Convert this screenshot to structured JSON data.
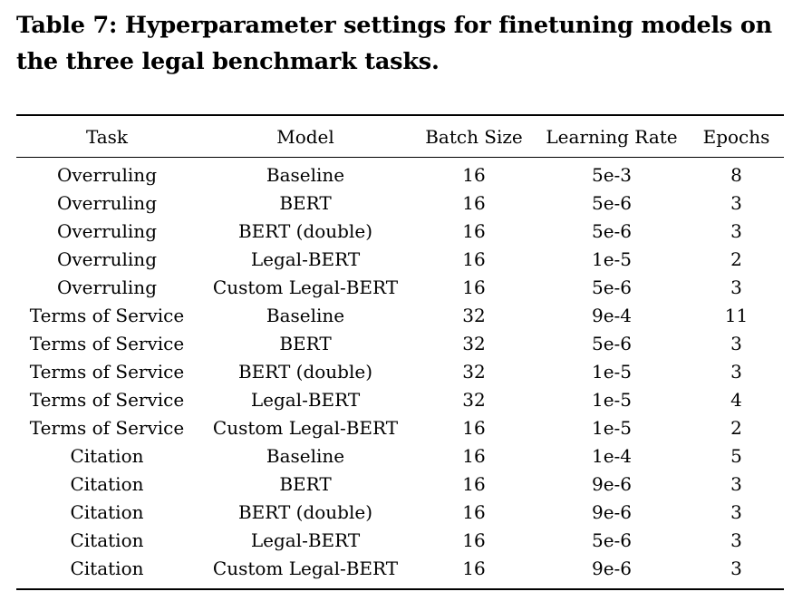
{
  "caption": "Table 7: Hyperparameter settings for finetuning models on the three legal benchmark tasks.",
  "table": {
    "headers": [
      "Task",
      "Model",
      "Batch Size",
      "Learning Rate",
      "Epochs"
    ],
    "rows": [
      [
        "Overruling",
        "Baseline",
        "16",
        "5e-3",
        "8"
      ],
      [
        "Overruling",
        "BERT",
        "16",
        "5e-6",
        "3"
      ],
      [
        "Overruling",
        "BERT (double)",
        "16",
        "5e-6",
        "3"
      ],
      [
        "Overruling",
        "Legal-BERT",
        "16",
        "1e-5",
        "2"
      ],
      [
        "Overruling",
        "Custom Legal-BERT",
        "16",
        "5e-6",
        "3"
      ],
      [
        "Terms of Service",
        "Baseline",
        "32",
        "9e-4",
        "11"
      ],
      [
        "Terms of Service",
        "BERT",
        "32",
        "5e-6",
        "3"
      ],
      [
        "Terms of Service",
        "BERT (double)",
        "32",
        "1e-5",
        "3"
      ],
      [
        "Terms of Service",
        "Legal-BERT",
        "32",
        "1e-5",
        "4"
      ],
      [
        "Terms of Service",
        "Custom Legal-BERT",
        "16",
        "1e-5",
        "2"
      ],
      [
        "Citation",
        "Baseline",
        "16",
        "1e-4",
        "5"
      ],
      [
        "Citation",
        "BERT",
        "16",
        "9e-6",
        "3"
      ],
      [
        "Citation",
        "BERT (double)",
        "16",
        "9e-6",
        "3"
      ],
      [
        "Citation",
        "Legal-BERT",
        "16",
        "5e-6",
        "3"
      ],
      [
        "Citation",
        "Custom Legal-BERT",
        "16",
        "9e-6",
        "3"
      ]
    ]
  }
}
